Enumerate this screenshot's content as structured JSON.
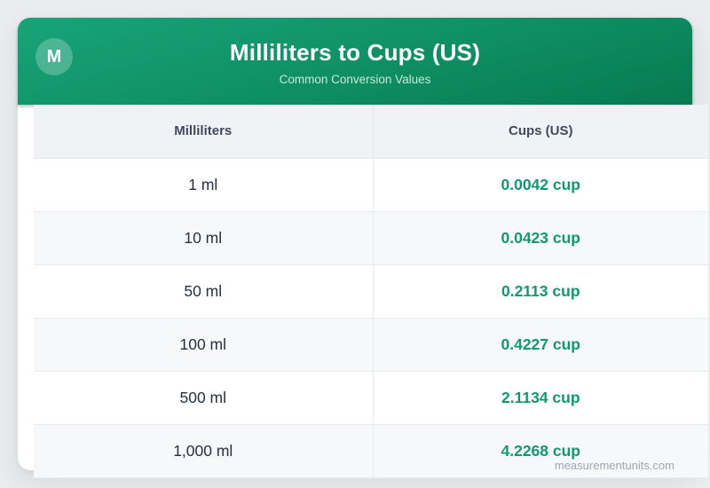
{
  "page": {
    "background_color": "#eaecef",
    "watermark": "measurementunits.com"
  },
  "header": {
    "logo_letter": "M",
    "title": "Milliliters to Cups (US)",
    "subtitle": "Common Conversion Values",
    "gradient_start": "#18a477",
    "gradient_end": "#077a52"
  },
  "table": {
    "columns": [
      "Milliliters",
      "Cups (US)"
    ],
    "rows": [
      {
        "ml": "1 ml",
        "cup": "0.0042 cup"
      },
      {
        "ml": "10 ml",
        "cup": "0.0423 cup"
      },
      {
        "ml": "50 ml",
        "cup": "0.2113 cup"
      },
      {
        "ml": "100 ml",
        "cup": "0.4227 cup"
      },
      {
        "ml": "500 ml",
        "cup": "2.1134 cup"
      },
      {
        "ml": "1,000 ml",
        "cup": "4.2268 cup"
      }
    ],
    "value_color": "#0d9b6c"
  }
}
